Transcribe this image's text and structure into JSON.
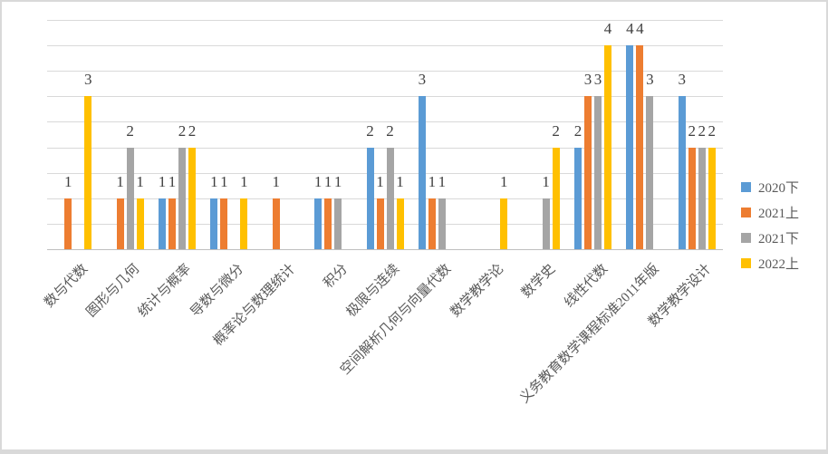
{
  "frame": {
    "background": "#ffffff",
    "border_color": "#d9d9d9"
  },
  "chart_data": {
    "type": "bar",
    "title": "",
    "xlabel": "",
    "ylabel": "",
    "categories": [
      "数与代数",
      "图形与几何",
      "统计与概率",
      "导数与微分",
      "概率论与数理统计",
      "积分",
      "极限与连续",
      "空间解析几何与向量代数",
      "数学教学论",
      "数学史",
      "线性代数",
      "义务教育数学课程标准2011年版",
      "数学教学设计"
    ],
    "series": [
      {
        "name": "2020下",
        "color": "#5B9BD5",
        "values": [
          0,
          0,
          1,
          1,
          0,
          1,
          2,
          3,
          0,
          0,
          2,
          4,
          3
        ]
      },
      {
        "name": "2021上",
        "color": "#ED7D31",
        "values": [
          1,
          1,
          1,
          1,
          1,
          1,
          1,
          1,
          0,
          0,
          3,
          4,
          2
        ]
      },
      {
        "name": "2021下",
        "color": "#A5A5A5",
        "values": [
          0,
          2,
          2,
          0,
          0,
          1,
          2,
          1,
          0,
          1,
          3,
          3,
          2
        ]
      },
      {
        "name": "2022上",
        "color": "#FFC000",
        "values": [
          3,
          1,
          2,
          1,
          0,
          0,
          1,
          0,
          1,
          2,
          4,
          0,
          2
        ]
      }
    ],
    "ylim": [
      0,
      4.5
    ],
    "y_major_unit": 0.5,
    "y_axis_labels_visible": false,
    "grid": true,
    "gridline_color": "#D9D9D9",
    "axis_line_color": "#BFBFBF",
    "data_labels": true,
    "data_label_position": "outside-end",
    "data_label_color": "#404040",
    "category_label_color": "#595959",
    "category_label_rotation_deg": 45,
    "legend_position": "right"
  }
}
